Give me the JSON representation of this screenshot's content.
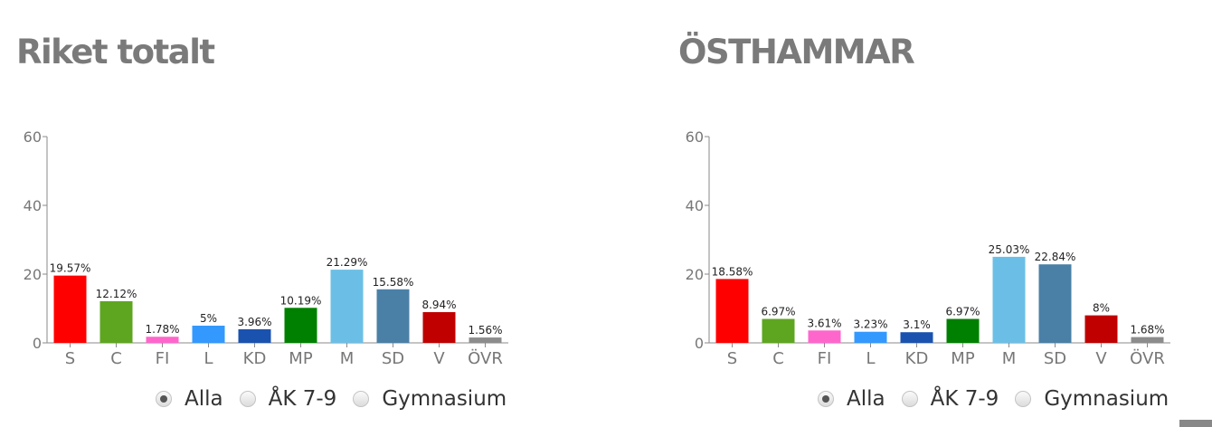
{
  "options": [
    "Alla",
    "ÅK 7-9",
    "Gymnasium"
  ],
  "selected_option": "Alla",
  "chart_data": [
    {
      "type": "bar",
      "title": "Riket totalt",
      "categories": [
        "S",
        "C",
        "FI",
        "L",
        "KD",
        "MP",
        "M",
        "SD",
        "V",
        "ÖVR"
      ],
      "values": [
        19.57,
        12.12,
        1.78,
        5,
        3.96,
        10.19,
        21.29,
        15.58,
        8.94,
        1.56
      ],
      "labels": [
        "19.57%",
        "12.12%",
        "1.78%",
        "5%",
        "3.96%",
        "10.19%",
        "21.29%",
        "15.58%",
        "8.94%",
        "1.56%"
      ],
      "colors": [
        "#ff0000",
        "#5ea620",
        "#ff66cc",
        "#3399ff",
        "#1a52b0",
        "#008000",
        "#6bbfe6",
        "#4a80a6",
        "#c00000",
        "#8c8c8c"
      ],
      "ylim": [
        0,
        60
      ],
      "yticks": [
        "0",
        "20",
        "40",
        "60"
      ],
      "grid": false,
      "legend": "none"
    },
    {
      "type": "bar",
      "title": "ÖSTHAMMAR",
      "categories": [
        "S",
        "C",
        "FI",
        "L",
        "KD",
        "MP",
        "M",
        "SD",
        "V",
        "ÖVR"
      ],
      "values": [
        18.58,
        6.97,
        3.61,
        3.23,
        3.1,
        6.97,
        25.03,
        22.84,
        8,
        1.68
      ],
      "labels": [
        "18.58%",
        "6.97%",
        "3.61%",
        "3.23%",
        "3.1%",
        "6.97%",
        "25.03%",
        "22.84%",
        "8%",
        "1.68%"
      ],
      "colors": [
        "#ff0000",
        "#5ea620",
        "#ff66cc",
        "#3399ff",
        "#1a52b0",
        "#008000",
        "#6bbfe6",
        "#4a80a6",
        "#c00000",
        "#8c8c8c"
      ],
      "ylim": [
        0,
        60
      ],
      "yticks": [
        "0",
        "20",
        "40",
        "60"
      ],
      "grid": false,
      "legend": "none"
    }
  ]
}
